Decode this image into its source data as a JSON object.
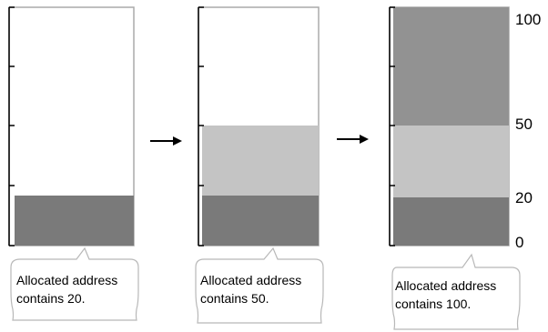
{
  "panels": [
    {
      "fills": [
        {
          "level": 20,
          "color": "#7a7a7a"
        }
      ],
      "callout": {
        "line1": "Allocated address",
        "line2": "contains 20."
      }
    },
    {
      "fills": [
        {
          "level": 20,
          "color": "#7a7a7a"
        },
        {
          "level": 50,
          "color": "#c4c4c4"
        }
      ],
      "callout": {
        "line1": "Allocated address",
        "line2": "contains 50."
      }
    },
    {
      "fills": [
        {
          "level": 20,
          "color": "#7a7a7a"
        },
        {
          "level": 50,
          "color": "#c4c4c4"
        },
        {
          "level": 100,
          "color": "#929292"
        }
      ],
      "callout": {
        "line1": "Allocated address",
        "line2": "contains 100."
      }
    }
  ],
  "scale_labels": [
    "100",
    "50",
    "20",
    "0"
  ],
  "arrows": [
    {
      "icon": "right-arrow-icon"
    },
    {
      "icon": "right-arrow-icon"
    }
  ],
  "colors": {
    "frame": "#aaaaaa",
    "axis": "#000000",
    "callout_border": "#b8b8b8"
  }
}
